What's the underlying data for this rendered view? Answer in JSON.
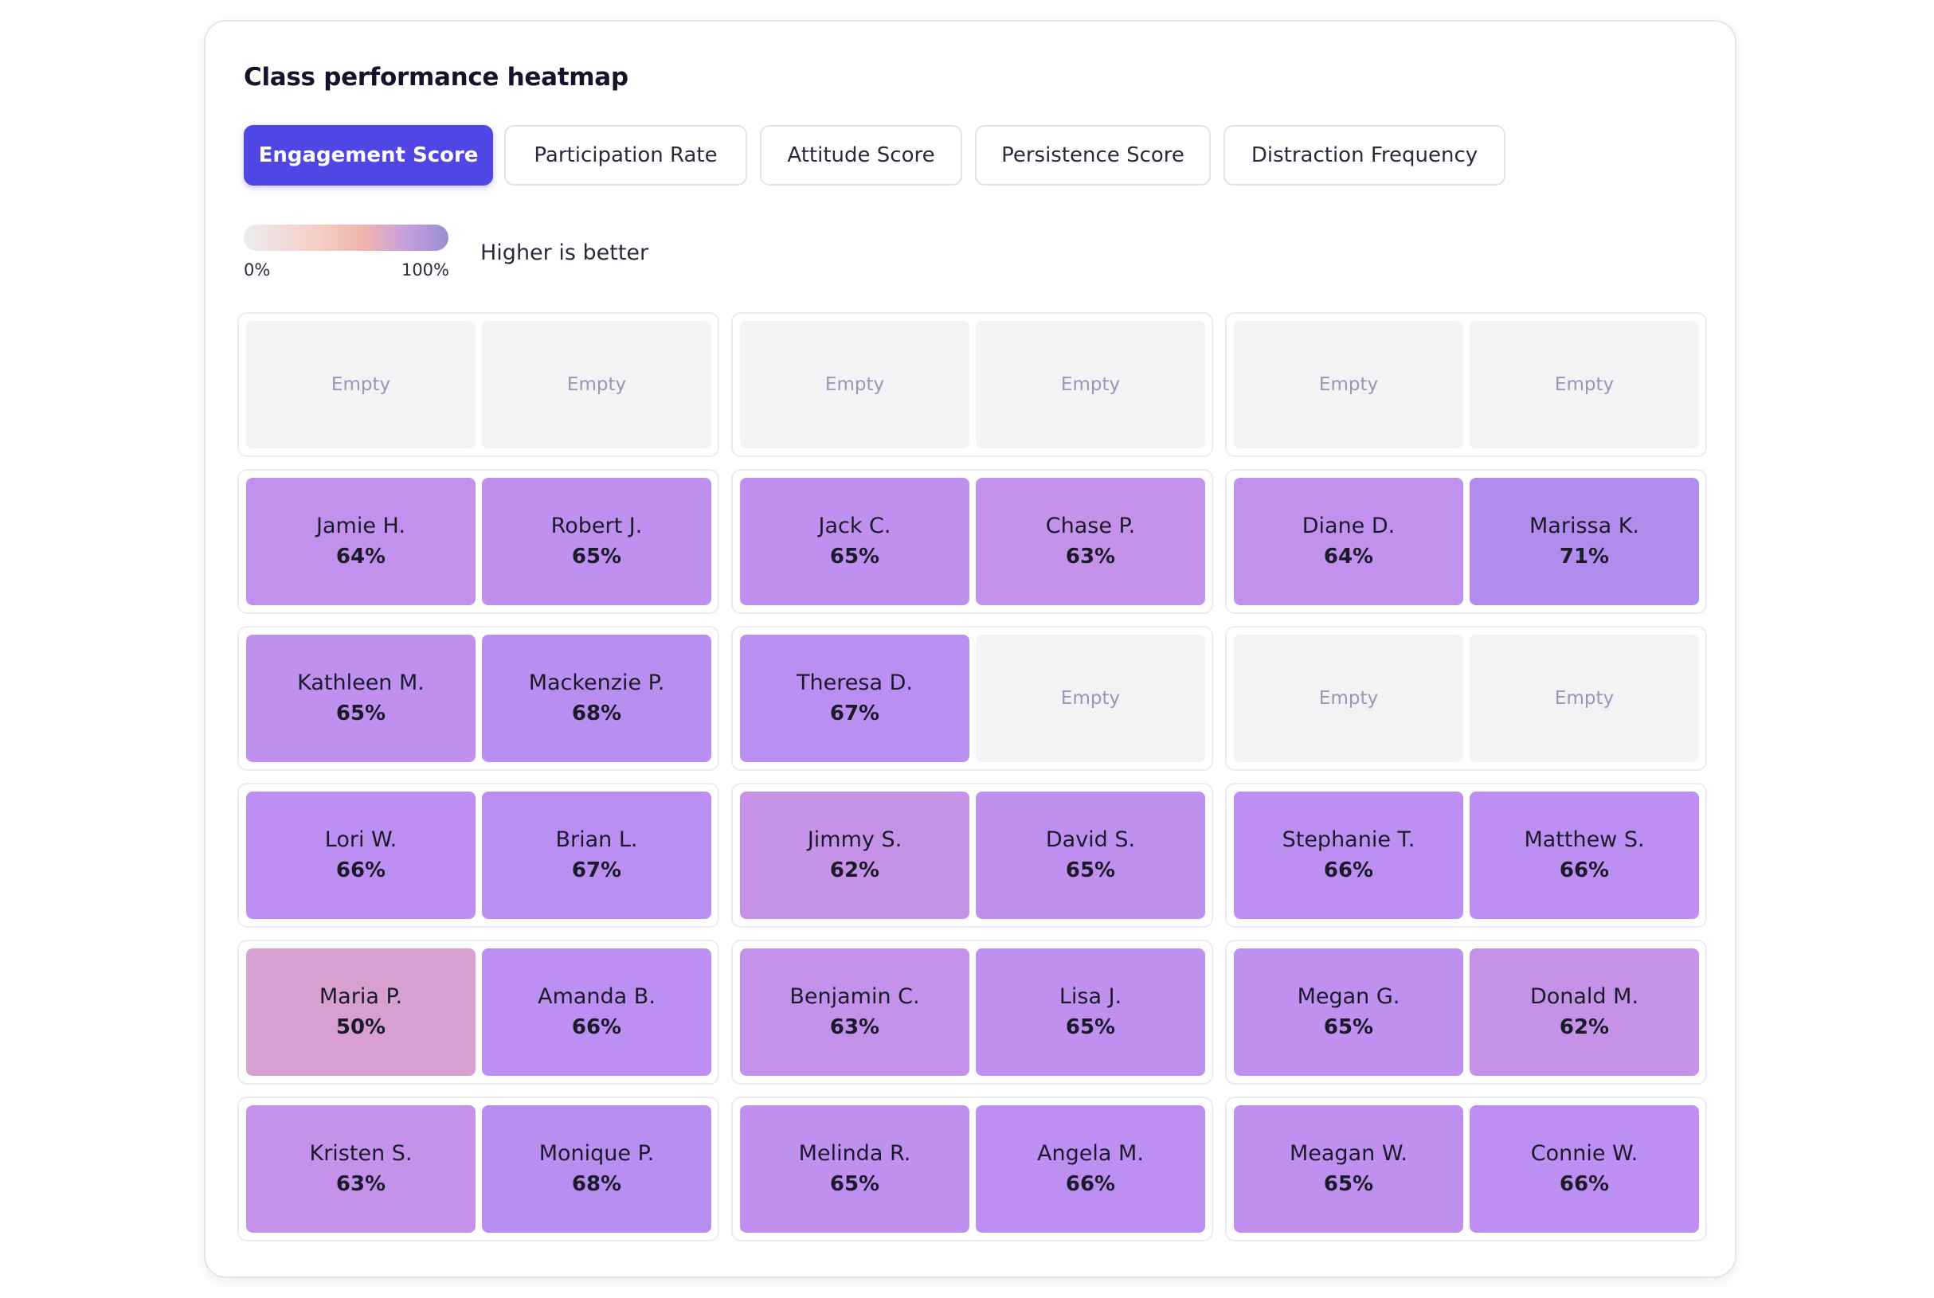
{
  "title": "Class performance heatmap",
  "tabs": [
    {
      "label": "Engagement Score",
      "active": true
    },
    {
      "label": "Participation Rate",
      "active": false
    },
    {
      "label": "Attitude Score",
      "active": false
    },
    {
      "label": "Persistence Score",
      "active": false
    },
    {
      "label": "Distraction Frequency",
      "active": false
    }
  ],
  "legend": {
    "min_label": "0%",
    "max_label": "100%",
    "note": "Higher is better",
    "gradient_colors": [
      "#ececef",
      "#f4cfc7",
      "#f0b5ad",
      "#c49fe0",
      "#9a8ed0"
    ]
  },
  "colors": {
    "accent": "#5046e5",
    "empty_seat": "#f3f3f6",
    "empty_text": "#9b94b8"
  },
  "empty_label": "Empty",
  "rows": [
    [
      [
        {
          "empty": true
        },
        {
          "empty": true
        }
      ],
      [
        {
          "empty": true
        },
        {
          "empty": true
        }
      ],
      [
        {
          "empty": true
        },
        {
          "empty": true
        }
      ]
    ],
    [
      [
        {
          "name": "Jamie H.",
          "score": 64,
          "score_label": "64%"
        },
        {
          "name": "Robert J.",
          "score": 65,
          "score_label": "65%"
        }
      ],
      [
        {
          "name": "Jack C.",
          "score": 65,
          "score_label": "65%"
        },
        {
          "name": "Chase P.",
          "score": 63,
          "score_label": "63%"
        }
      ],
      [
        {
          "name": "Diane D.",
          "score": 64,
          "score_label": "64%"
        },
        {
          "name": "Marissa K.",
          "score": 71,
          "score_label": "71%"
        }
      ]
    ],
    [
      [
        {
          "name": "Kathleen M.",
          "score": 65,
          "score_label": "65%"
        },
        {
          "name": "Mackenzie P.",
          "score": 68,
          "score_label": "68%"
        }
      ],
      [
        {
          "name": "Theresa D.",
          "score": 67,
          "score_label": "67%"
        },
        {
          "empty": true
        }
      ],
      [
        {
          "empty": true
        },
        {
          "empty": true
        }
      ]
    ],
    [
      [
        {
          "name": "Lori W.",
          "score": 66,
          "score_label": "66%"
        },
        {
          "name": "Brian L.",
          "score": 67,
          "score_label": "67%"
        }
      ],
      [
        {
          "name": "Jimmy S.",
          "score": 62,
          "score_label": "62%"
        },
        {
          "name": "David S.",
          "score": 65,
          "score_label": "65%"
        }
      ],
      [
        {
          "name": "Stephanie T.",
          "score": 66,
          "score_label": "66%"
        },
        {
          "name": "Matthew S.",
          "score": 66,
          "score_label": "66%"
        }
      ]
    ],
    [
      [
        {
          "name": "Maria P.",
          "score": 50,
          "score_label": "50%"
        },
        {
          "name": "Amanda B.",
          "score": 66,
          "score_label": "66%"
        }
      ],
      [
        {
          "name": "Benjamin C.",
          "score": 63,
          "score_label": "63%"
        },
        {
          "name": "Lisa J.",
          "score": 65,
          "score_label": "65%"
        }
      ],
      [
        {
          "name": "Megan G.",
          "score": 65,
          "score_label": "65%"
        },
        {
          "name": "Donald M.",
          "score": 62,
          "score_label": "62%"
        }
      ]
    ],
    [
      [
        {
          "name": "Kristen S.",
          "score": 63,
          "score_label": "63%"
        },
        {
          "name": "Monique P.",
          "score": 68,
          "score_label": "68%"
        }
      ],
      [
        {
          "name": "Melinda R.",
          "score": 65,
          "score_label": "65%"
        },
        {
          "name": "Angela M.",
          "score": 66,
          "score_label": "66%"
        }
      ],
      [
        {
          "name": "Meagan W.",
          "score": 65,
          "score_label": "65%"
        },
        {
          "name": "Connie W.",
          "score": 66,
          "score_label": "66%"
        }
      ]
    ]
  ]
}
